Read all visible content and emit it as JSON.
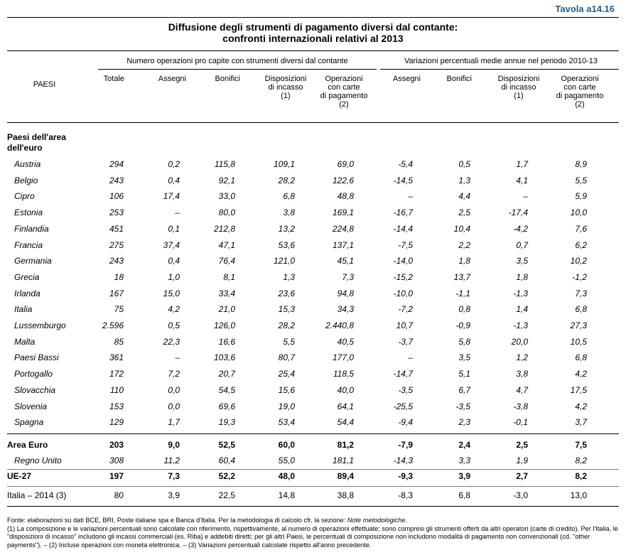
{
  "tavola": "Tavola a14.16",
  "title": {
    "line1": "Diffusione degli strumenti di pagamento diversi dal contante:",
    "line2": "confronti internazionali relativi al 2013"
  },
  "group_headers": {
    "numero": "Numero operazioni pro capite con strumenti diversi dal contante",
    "variazioni": "Variazioni percentuali medie annue nel periodo 2010-13"
  },
  "columns": {
    "paesi": "PAESI",
    "totale": "Totale",
    "assegni": "Assegni",
    "bonifici": "Bonifici",
    "disposizioni": [
      "Disposizioni",
      "di incasso",
      "(1)"
    ],
    "operazioni": [
      "Operazioni",
      "con carte",
      "di pagamento",
      "(2)"
    ]
  },
  "section_label": [
    "Paesi dell'area",
    "dell'euro"
  ],
  "rows": [
    {
      "name": "Austria",
      "v": [
        "294",
        "0,2",
        "115,8",
        "109,1",
        "69,0",
        "-5,4",
        "0,5",
        "1,7",
        "8,9"
      ]
    },
    {
      "name": "Belgio",
      "v": [
        "243",
        "0,4",
        "92,1",
        "28,2",
        "122,6",
        "-14,5",
        "1,3",
        "4,1",
        "5,5"
      ]
    },
    {
      "name": "Cipro",
      "v": [
        "106",
        "17,4",
        "33,0",
        "6,8",
        "48,8",
        "–",
        "4,4",
        "–",
        "5,9"
      ]
    },
    {
      "name": "Estonia",
      "v": [
        "253",
        "–",
        "80,0",
        "3,8",
        "169,1",
        "-16,7",
        "2,5",
        "-17,4",
        "10,0"
      ]
    },
    {
      "name": "Finlandia",
      "v": [
        "451",
        "0,1",
        "212,8",
        "13,2",
        "224,8",
        "-14,4",
        "10,4",
        "-4,2",
        "7,6"
      ]
    },
    {
      "name": "Francia",
      "v": [
        "275",
        "37,4",
        "47,1",
        "53,6",
        "137,1",
        "-7,5",
        "2,2",
        "0,7",
        "6,2"
      ]
    },
    {
      "name": "Germania",
      "v": [
        "243",
        "0,4",
        "76,4",
        "121,0",
        "45,1",
        "-14,0",
        "1,8",
        "3,5",
        "10,2"
      ]
    },
    {
      "name": "Grecia",
      "v": [
        "18",
        "1,0",
        "8,1",
        "1,3",
        "7,3",
        "-15,2",
        "13,7",
        "1,8",
        "-1,2"
      ]
    },
    {
      "name": "Irlanda",
      "v": [
        "167",
        "15,0",
        "33,4",
        "23,6",
        "94,8",
        "-10,0",
        "-1,1",
        "-1,3",
        "7,3"
      ]
    },
    {
      "name": "Italia",
      "v": [
        "75",
        "4,2",
        "21,0",
        "15,3",
        "34,3",
        "-7,2",
        "0,8",
        "1,4",
        "6,8"
      ]
    },
    {
      "name": "Lussemburgo",
      "v": [
        "2.596",
        "0,5",
        "126,0",
        "28,2",
        "2.440,8",
        "10,7",
        "-0,9",
        "-1,3",
        "27,3"
      ]
    },
    {
      "name": "Malta",
      "v": [
        "85",
        "22,3",
        "16,6",
        "5,5",
        "40,5",
        "-3,7",
        "5,8",
        "20,0",
        "10,5"
      ]
    },
    {
      "name": "Paesi Bassi",
      "v": [
        "361",
        "–",
        "103,6",
        "80,7",
        "177,0",
        "–",
        "3,5",
        "1,2",
        "6,8"
      ]
    },
    {
      "name": "Portogallo",
      "v": [
        "172",
        "7,2",
        "20,7",
        "25,4",
        "118,5",
        "-14,7",
        "5,1",
        "3,8",
        "4,2"
      ]
    },
    {
      "name": "Slovacchia",
      "v": [
        "110",
        "0,0",
        "54,5",
        "15,6",
        "40,0",
        "-3,5",
        "6,7",
        "4,7",
        "17,5"
      ]
    },
    {
      "name": "Slovenia",
      "v": [
        "153",
        "0,0",
        "69,6",
        "19,0",
        "64,1",
        "-25,5",
        "-3,5",
        "-3,8",
        "4,2"
      ]
    },
    {
      "name": "Spagna",
      "v": [
        "129",
        "1,7",
        "19,3",
        "53,4",
        "54,4",
        "-9,4",
        "2,3",
        "-0,1",
        "3,7"
      ]
    }
  ],
  "area_euro": {
    "name": "Area Euro",
    "v": [
      "203",
      "9,0",
      "52,5",
      "60,0",
      "81,2",
      "-7,9",
      "2,4",
      "2,5",
      "7,5"
    ]
  },
  "regno_unito": {
    "name": "Regno Unito",
    "v": [
      "308",
      "11,2",
      "60,4",
      "55,0",
      "181,1",
      "-14,3",
      "3,3",
      "1,9",
      "8,2"
    ]
  },
  "ue27": {
    "name": "UE-27",
    "v": [
      "197",
      "7,3",
      "52,2",
      "48,0",
      "89,4",
      "-9,3",
      "3,9",
      "2,7",
      "8,2"
    ]
  },
  "italia2014": {
    "name": "Italia – 2014 (3)",
    "v": [
      "80",
      "3,9",
      "22,5",
      "14,8",
      "38,8",
      "-8,3",
      "6,8",
      "-3,0",
      "13,0"
    ]
  },
  "footnotes": {
    "fonte_a": "Fonte: elaborazioni su dati BCE, BRI, Poste italiane spa e Banca d'Italia. Per la metodologia di calcolo cfr. la sezione: ",
    "fonte_b": "Note metodologiche",
    "fonte_c": ".",
    "note1": "(1) La composizione e le variazioni percentuali sono calcolate con riferimento, rispettivamente, al numero di operazioni effettuate; sono compresi gli strumenti offerti da altri operatori (carte di credito). Per l'Italia, le \"disposizioni di incasso\" includono gli incassi commerciali (es. Riba) e addebiti diretti; per gli altri Paesi, le percentuali di composizione non includono modalità di pagamento non convenzionali (cd. \"other payments\"). – (2) Incluse operazioni con moneta elettronica. – (3) Variazioni percentuali calcolate rispetto all'anno precedente."
  }
}
